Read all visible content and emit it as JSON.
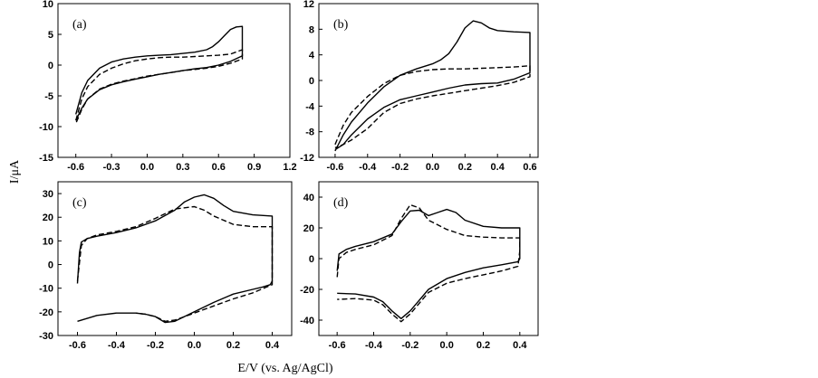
{
  "figure": {
    "xlabel": "E/V (vs. Ag/AgCl)",
    "ylabel": "I/μA"
  },
  "chart_data": [
    {
      "type": "line",
      "panel_label": "(a)",
      "xlim": [
        -0.75,
        1.2
      ],
      "ylim": [
        -15,
        10
      ],
      "xticks": [
        -0.6,
        -0.3,
        0.0,
        0.3,
        0.6,
        0.9,
        1.2
      ],
      "xtick_labels": [
        "-0.6",
        "-0.3",
        "0.0",
        "0.3",
        "0.6",
        "0.9",
        "1.2"
      ],
      "yticks": [
        -15,
        -10,
        -5,
        0,
        5,
        10
      ],
      "ytick_labels": [
        "-15",
        "-10",
        "-5",
        "0",
        "5",
        "10"
      ],
      "series": [
        {
          "style": "solid",
          "x": [
            -0.6,
            -0.55,
            -0.5,
            -0.4,
            -0.3,
            -0.2,
            -0.1,
            0.0,
            0.1,
            0.2,
            0.3,
            0.4,
            0.5,
            0.55,
            0.6,
            0.65,
            0.7,
            0.75,
            0.8,
            0.8,
            0.7,
            0.6,
            0.5,
            0.4,
            0.3,
            0.2,
            0.1,
            0.0,
            -0.1,
            -0.2,
            -0.3,
            -0.4,
            -0.5,
            -0.55,
            -0.6
          ],
          "y": [
            -8.0,
            -4.5,
            -2.5,
            -0.5,
            0.5,
            1.0,
            1.3,
            1.5,
            1.6,
            1.7,
            1.9,
            2.1,
            2.5,
            3.0,
            3.8,
            4.8,
            5.8,
            6.2,
            6.3,
            1.5,
            0.6,
            0.0,
            -0.4,
            -0.6,
            -0.9,
            -1.2,
            -1.5,
            -1.9,
            -2.3,
            -2.7,
            -3.2,
            -4.0,
            -5.5,
            -7.0,
            -9.0
          ]
        },
        {
          "style": "dashed",
          "x": [
            -0.6,
            -0.55,
            -0.5,
            -0.4,
            -0.3,
            -0.2,
            -0.1,
            0.0,
            0.1,
            0.2,
            0.3,
            0.4,
            0.5,
            0.6,
            0.7,
            0.8,
            0.8,
            0.7,
            0.6,
            0.5,
            0.4,
            0.3,
            0.2,
            0.1,
            0.0,
            -0.1,
            -0.2,
            -0.3,
            -0.4,
            -0.5,
            -0.55,
            -0.6
          ],
          "y": [
            -9.0,
            -5.5,
            -3.5,
            -1.5,
            -0.5,
            0.2,
            0.7,
            1.0,
            1.2,
            1.3,
            1.3,
            1.4,
            1.5,
            1.6,
            1.8,
            2.5,
            1.0,
            0.3,
            -0.2,
            -0.5,
            -0.7,
            -0.9,
            -1.2,
            -1.5,
            -1.8,
            -2.2,
            -2.6,
            -3.1,
            -3.9,
            -5.5,
            -7.2,
            -9.5
          ]
        }
      ]
    },
    {
      "type": "line",
      "panel_label": "(b)",
      "xlim": [
        -0.7,
        0.65
      ],
      "ylim": [
        -12,
        12
      ],
      "xticks": [
        -0.6,
        -0.4,
        -0.2,
        0.0,
        0.2,
        0.4,
        0.6
      ],
      "xtick_labels": [
        "-0.6",
        "-0.4",
        "-0.2",
        "0.0",
        "0.2",
        "0.4",
        "0.6"
      ],
      "yticks": [
        -12,
        -8,
        -4,
        0,
        4,
        8,
        12
      ],
      "ytick_labels": [
        "-12",
        "-8",
        "-4",
        "0",
        "4",
        "8",
        "12"
      ],
      "series": [
        {
          "style": "solid",
          "x": [
            -0.6,
            -0.55,
            -0.5,
            -0.4,
            -0.3,
            -0.2,
            -0.1,
            0.0,
            0.05,
            0.1,
            0.15,
            0.2,
            0.25,
            0.3,
            0.35,
            0.4,
            0.5,
            0.6,
            0.6,
            0.5,
            0.4,
            0.3,
            0.2,
            0.1,
            0.0,
            -0.1,
            -0.2,
            -0.3,
            -0.4,
            -0.5,
            -0.55,
            -0.6
          ],
          "y": [
            -11.0,
            -8.5,
            -6.5,
            -3.5,
            -1.0,
            0.8,
            1.8,
            2.6,
            3.2,
            4.2,
            6.0,
            8.2,
            9.3,
            9.0,
            8.2,
            7.8,
            7.6,
            7.5,
            1.2,
            0.2,
            -0.4,
            -0.5,
            -0.7,
            -1.2,
            -1.8,
            -2.4,
            -3.0,
            -4.2,
            -6.0,
            -8.5,
            -10.0,
            -10.8
          ]
        },
        {
          "style": "dashed",
          "x": [
            -0.6,
            -0.55,
            -0.5,
            -0.4,
            -0.3,
            -0.2,
            -0.1,
            0.0,
            0.1,
            0.2,
            0.3,
            0.4,
            0.5,
            0.6,
            0.6,
            0.5,
            0.4,
            0.3,
            0.2,
            0.1,
            0.0,
            -0.1,
            -0.2,
            -0.3,
            -0.4,
            -0.5,
            -0.55,
            -0.6
          ],
          "y": [
            -10.0,
            -7.0,
            -5.0,
            -2.5,
            -0.5,
            0.8,
            1.4,
            1.7,
            1.8,
            1.8,
            1.9,
            2.0,
            2.1,
            2.3,
            0.6,
            -0.3,
            -0.8,
            -1.2,
            -1.6,
            -2.0,
            -2.4,
            -2.9,
            -3.6,
            -5.0,
            -7.5,
            -9.3,
            -10.0,
            -10.5
          ]
        }
      ]
    },
    {
      "type": "line",
      "panel_label": "(c)",
      "xlim": [
        -0.7,
        0.5
      ],
      "ylim": [
        -30,
        35
      ],
      "xticks": [
        -0.6,
        -0.4,
        -0.2,
        0.0,
        0.2,
        0.4
      ],
      "xtick_labels": [
        "-0.6",
        "-0.4",
        "-0.2",
        "0.0",
        "0.2",
        "0.4"
      ],
      "yticks": [
        -30,
        -20,
        -10,
        0,
        10,
        20,
        30
      ],
      "ytick_labels": [
        "-30",
        "-20",
        "-10",
        "0",
        "10",
        "20",
        "30"
      ],
      "series": [
        {
          "style": "solid",
          "x": [
            -0.6,
            -0.59,
            -0.58,
            -0.55,
            -0.5,
            -0.4,
            -0.3,
            -0.2,
            -0.1,
            -0.05,
            0.0,
            0.05,
            0.1,
            0.15,
            0.2,
            0.3,
            0.4,
            0.4,
            0.39,
            0.35,
            0.3,
            0.2,
            0.1,
            0.0,
            -0.1,
            -0.15,
            -0.2,
            -0.25,
            -0.3,
            -0.4,
            -0.5,
            -0.6
          ],
          "y": [
            -8.0,
            5.0,
            9.5,
            11.0,
            12.0,
            13.5,
            15.5,
            18.5,
            23.0,
            26.5,
            28.5,
            29.5,
            28.0,
            25.0,
            22.5,
            21.0,
            20.5,
            -7.0,
            -8.5,
            -9.5,
            -10.5,
            -12.5,
            -16.0,
            -20.0,
            -24.0,
            -24.5,
            -22.0,
            -21.0,
            -20.5,
            -20.5,
            -21.5,
            -24.0
          ]
        },
        {
          "style": "dashed",
          "x": [
            -0.6,
            -0.58,
            -0.55,
            -0.5,
            -0.4,
            -0.3,
            -0.2,
            -0.1,
            0.0,
            0.05,
            0.1,
            0.2,
            0.3,
            0.4,
            0.4,
            0.3,
            0.2,
            0.1,
            0.0,
            -0.1,
            -0.15,
            -0.2,
            -0.25,
            -0.3
          ],
          "y": [
            -7.0,
            8.0,
            11.0,
            12.5,
            14.0,
            16.0,
            19.5,
            23.5,
            24.5,
            23.0,
            20.5,
            17.0,
            16.0,
            16.0,
            -8.5,
            -12.0,
            -14.5,
            -17.5,
            -20.5,
            -23.5,
            -24.0,
            -22.0,
            -21.0,
            -20.5
          ]
        }
      ]
    },
    {
      "type": "line",
      "panel_label": "(d)",
      "xlim": [
        -0.7,
        0.5
      ],
      "ylim": [
        -50,
        50
      ],
      "xticks": [
        -0.6,
        -0.4,
        -0.2,
        0.0,
        0.2,
        0.4
      ],
      "xtick_labels": [
        "-0.6",
        "-0.4",
        "-0.2",
        "0.0",
        "0.2",
        "0.4"
      ],
      "yticks": [
        -40,
        -20,
        0,
        20,
        40
      ],
      "ytick_labels": [
        "-40",
        "-20",
        "0",
        "20",
        "40"
      ],
      "series": [
        {
          "style": "solid",
          "x": [
            -0.6,
            -0.59,
            -0.55,
            -0.5,
            -0.4,
            -0.3,
            -0.25,
            -0.2,
            -0.15,
            -0.1,
            -0.05,
            0.0,
            0.05,
            0.1,
            0.2,
            0.3,
            0.4,
            0.4,
            0.39,
            0.3,
            0.2,
            0.1,
            0.0,
            -0.1,
            -0.15,
            -0.2,
            -0.25,
            -0.3,
            -0.35,
            -0.4,
            -0.5,
            -0.6
          ],
          "y": [
            -8.0,
            3.0,
            6.0,
            8.0,
            11.0,
            16.0,
            24.0,
            31.0,
            31.5,
            28.0,
            30.0,
            32.0,
            30.0,
            25.0,
            21.0,
            20.0,
            20.0,
            0.0,
            -2.0,
            -4.0,
            -6.0,
            -9.0,
            -13.0,
            -20.0,
            -27.0,
            -34.0,
            -39.0,
            -34.0,
            -28.0,
            -25.0,
            -23.0,
            -22.5
          ]
        },
        {
          "style": "dashed",
          "x": [
            -0.6,
            -0.59,
            -0.55,
            -0.5,
            -0.4,
            -0.3,
            -0.25,
            -0.2,
            -0.15,
            -0.1,
            0.0,
            0.1,
            0.2,
            0.3,
            0.4,
            0.4,
            0.39,
            0.3,
            0.2,
            0.1,
            0.0,
            -0.1,
            -0.15,
            -0.2,
            -0.25,
            -0.3,
            -0.35,
            -0.4,
            -0.5,
            -0.6
          ],
          "y": [
            -12.0,
            0.0,
            4.0,
            6.0,
            9.0,
            15.0,
            26.0,
            35.0,
            33.0,
            25.0,
            19.0,
            15.0,
            14.0,
            13.5,
            13.5,
            5.0,
            -5.0,
            -8.0,
            -10.5,
            -13.0,
            -16.0,
            -22.0,
            -29.0,
            -36.0,
            -41.0,
            -36.0,
            -30.0,
            -27.0,
            -26.0,
            -26.5
          ]
        }
      ]
    }
  ]
}
